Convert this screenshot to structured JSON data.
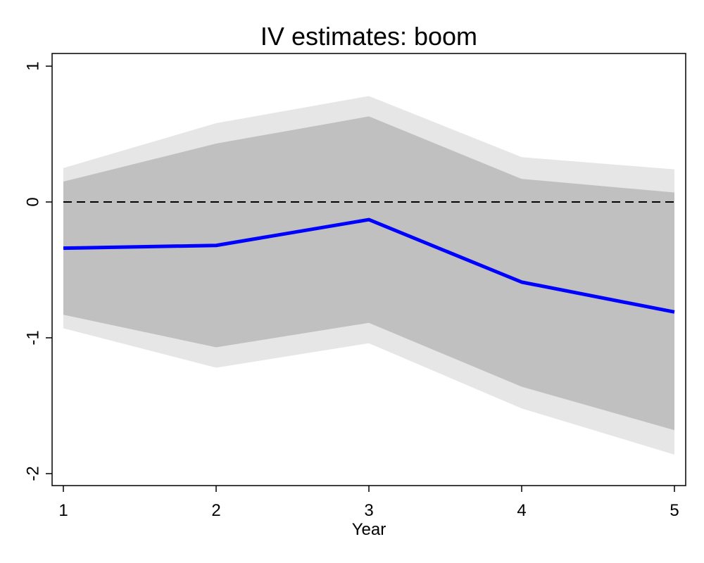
{
  "chart_data": {
    "type": "line",
    "title": "IV estimates: boom",
    "xlabel": "Year",
    "ylabel": "",
    "x": [
      1,
      2,
      3,
      4,
      5
    ],
    "xlim": [
      1,
      5
    ],
    "ylim": [
      -2,
      1
    ],
    "yticks": [
      -2,
      -1,
      0,
      1
    ],
    "xticks": [
      1,
      2,
      3,
      4,
      5
    ],
    "grid": false,
    "legend": "none",
    "reference_line": {
      "y": 0,
      "style": "dashed",
      "color": "#000000"
    },
    "series": [
      {
        "kind": "band",
        "color": "#e6e6e6",
        "lower": [
          -0.93,
          -1.22,
          -1.04,
          -1.52,
          -1.86
        ],
        "upper": [
          0.25,
          0.58,
          0.78,
          0.33,
          0.24
        ]
      },
      {
        "kind": "band",
        "color": "#c0c0c0",
        "lower": [
          -0.83,
          -1.07,
          -0.89,
          -1.36,
          -1.68
        ],
        "upper": [
          0.15,
          0.43,
          0.63,
          0.17,
          0.07
        ]
      },
      {
        "kind": "line",
        "color": "#0000ff",
        "values": [
          -0.34,
          -0.32,
          -0.13,
          -0.59,
          -0.81
        ]
      }
    ]
  }
}
